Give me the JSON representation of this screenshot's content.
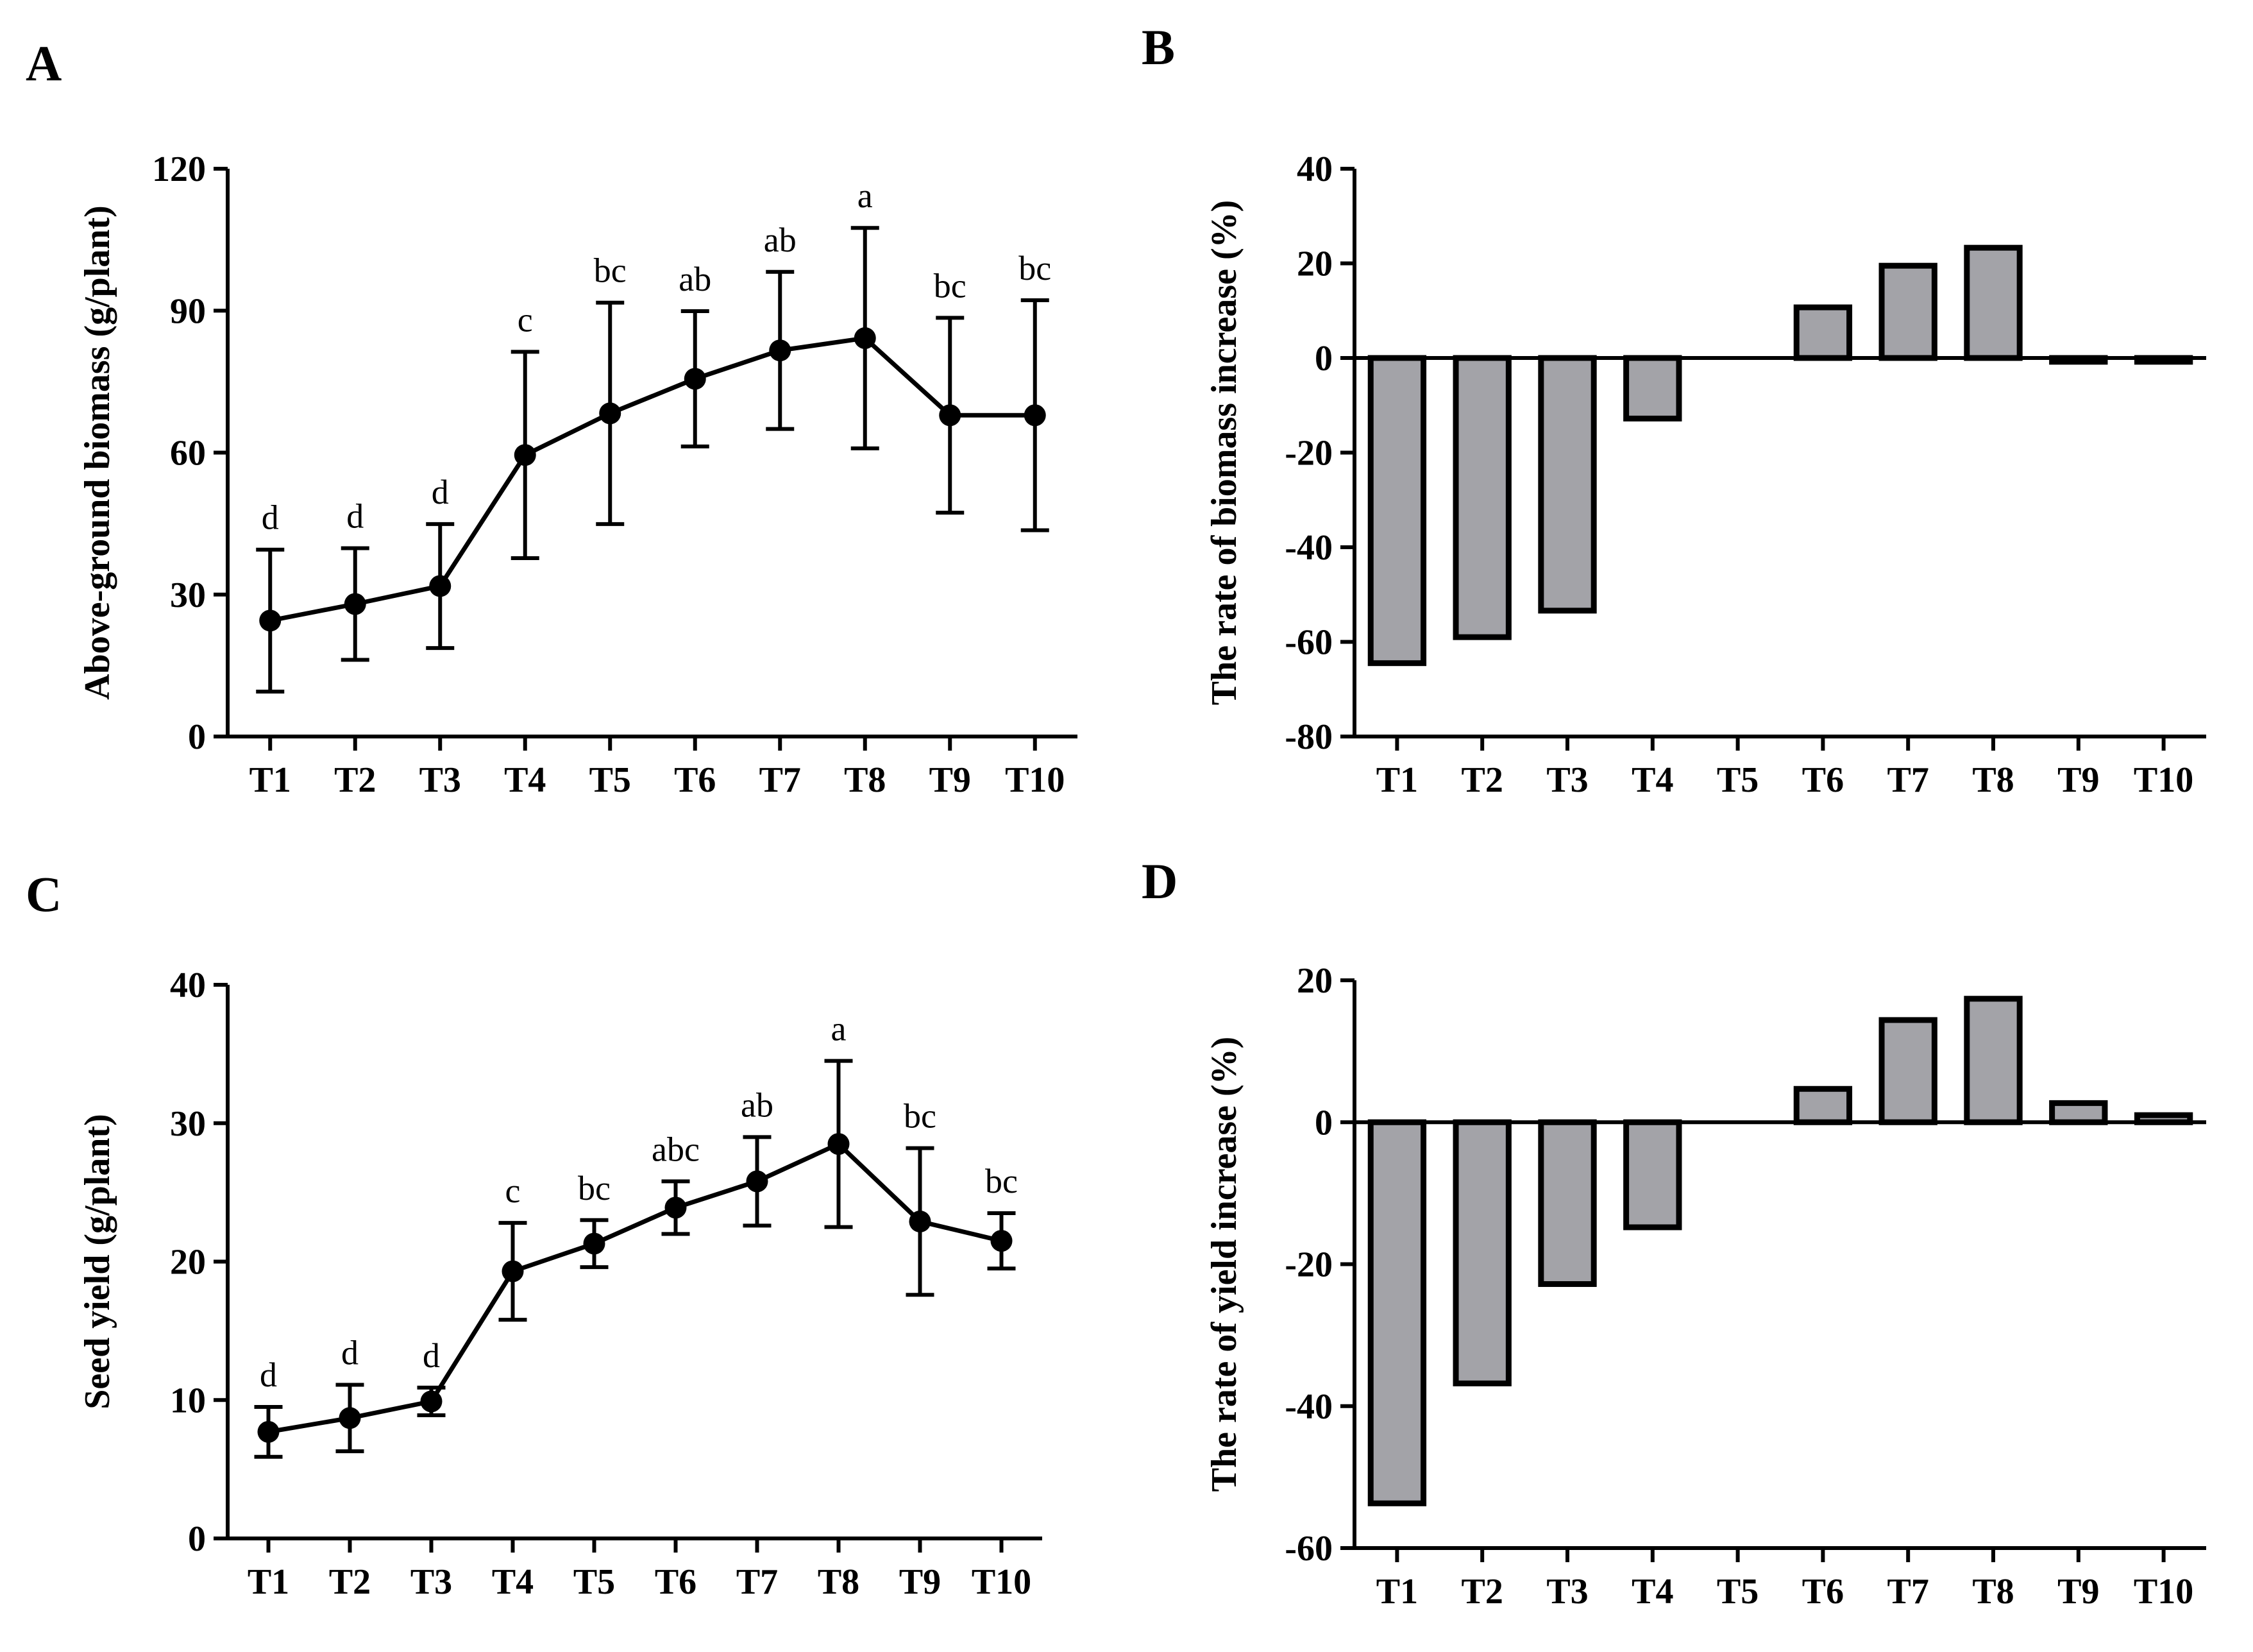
{
  "colors": {
    "ink": "#000000",
    "bar_fill": "#a3a3a8",
    "background": "#ffffff"
  },
  "chart_data": [
    {
      "id": "A",
      "type": "line",
      "panel_label": "A",
      "title": "",
      "xlabel": "",
      "ylabel": "Above-ground biomass (g/plant)",
      "categories": [
        "T1",
        "T2",
        "T3",
        "T4",
        "T5",
        "T6",
        "T7",
        "T8",
        "T9",
        "T10"
      ],
      "values": [
        24.5,
        28.0,
        31.8,
        59.5,
        68.3,
        75.6,
        81.6,
        84.2,
        67.9,
        67.9
      ],
      "errors": [
        15.0,
        11.8,
        13.1,
        21.8,
        23.4,
        14.3,
        16.6,
        23.3,
        20.6,
        24.3
      ],
      "significance": [
        "d",
        "d",
        "d",
        "c",
        "bc",
        "ab",
        "ab",
        "a",
        "bc",
        "bc"
      ],
      "ylim": [
        0,
        120
      ],
      "yticks": [
        0,
        30,
        60,
        90,
        120
      ],
      "grid": false,
      "legend": "none"
    },
    {
      "id": "B",
      "type": "bar",
      "panel_label": "B",
      "title": "",
      "xlabel": "",
      "ylabel": "The rate of biomass increase (%)",
      "categories": [
        "T1",
        "T2",
        "T3",
        "T4",
        "T5",
        "T6",
        "T7",
        "T8",
        "T9",
        "T10"
      ],
      "values": [
        -64.5,
        -59.0,
        -53.4,
        -12.8,
        0,
        10.7,
        19.5,
        23.3,
        -0.8,
        -0.8
      ],
      "ylim": [
        -80,
        40
      ],
      "yticks": [
        -80,
        -60,
        -40,
        -20,
        0,
        20,
        40
      ],
      "grid": false,
      "legend": "none"
    },
    {
      "id": "C",
      "type": "line",
      "panel_label": "C",
      "title": "",
      "xlabel": "",
      "ylabel": "Seed yield (g/plant)",
      "categories": [
        "T1",
        "T2",
        "T3",
        "T4",
        "T5",
        "T6",
        "T7",
        "T8",
        "T9",
        "T10"
      ],
      "values": [
        7.7,
        8.7,
        9.9,
        19.3,
        21.3,
        23.9,
        25.8,
        28.5,
        22.9,
        21.5
      ],
      "errors": [
        1.8,
        2.4,
        1.0,
        3.5,
        1.7,
        1.9,
        3.2,
        6.0,
        5.3,
        2.0
      ],
      "significance": [
        "d",
        "d",
        "d",
        "c",
        "bc",
        "abc",
        "ab",
        "a",
        "bc",
        "bc"
      ],
      "ylim": [
        0,
        40
      ],
      "yticks": [
        0,
        10,
        20,
        30,
        40
      ],
      "grid": false,
      "legend": "none"
    },
    {
      "id": "D",
      "type": "bar",
      "panel_label": "D",
      "title": "",
      "xlabel": "",
      "ylabel": "The rate of yield increase (%)",
      "categories": [
        "T1",
        "T2",
        "T3",
        "T4",
        "T5",
        "T6",
        "T7",
        "T8",
        "T9",
        "T10"
      ],
      "values": [
        -53.7,
        -36.8,
        -22.8,
        -14.8,
        0,
        4.7,
        14.4,
        17.4,
        2.7,
        1.0
      ],
      "ylim": [
        -60,
        20
      ],
      "yticks": [
        -60,
        -40,
        -20,
        0,
        20
      ],
      "grid": false,
      "legend": "none"
    }
  ]
}
